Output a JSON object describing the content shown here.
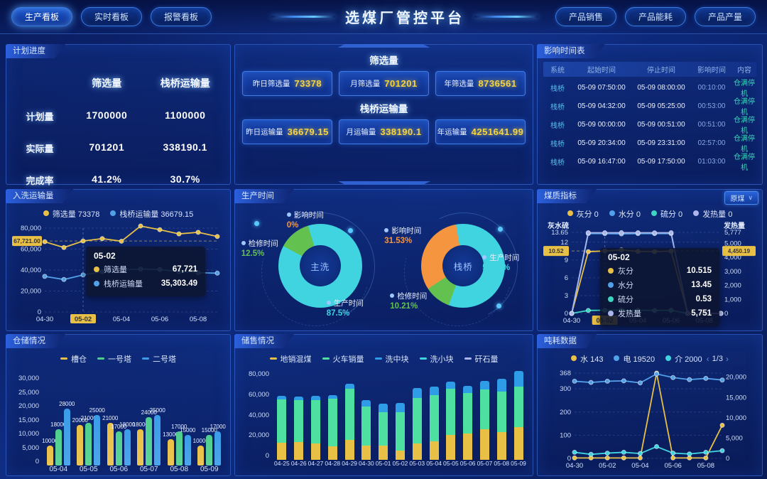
{
  "header": {
    "title": "选煤厂管控平台",
    "left_buttons": [
      {
        "label": "生产看板",
        "active": true
      },
      {
        "label": "实时看板",
        "active": false
      },
      {
        "label": "报警看板",
        "active": false
      }
    ],
    "right_buttons": [
      {
        "label": "产品销售"
      },
      {
        "label": "产品能耗"
      },
      {
        "label": "产品产量"
      }
    ]
  },
  "plan_progress": {
    "title": "计划进度",
    "columns": [
      "筛选量",
      "栈桥运输量"
    ],
    "rows": [
      {
        "label": "计划量",
        "values": [
          "1700000",
          "1100000"
        ]
      },
      {
        "label": "实际量",
        "values": [
          "701201",
          "338190.1"
        ]
      },
      {
        "label": "完成率",
        "values": [
          "41.2%",
          "30.7%"
        ]
      }
    ]
  },
  "volume_summary": {
    "sections": [
      {
        "title": "筛选量",
        "stats": [
          {
            "label": "昨日筛选量",
            "value": "73378"
          },
          {
            "label": "月筛选量",
            "value": "701201"
          },
          {
            "label": "年筛选量",
            "value": "8736561"
          }
        ]
      },
      {
        "title": "栈桥运输量",
        "stats": [
          {
            "label": "昨日运输量",
            "value": "36679.15"
          },
          {
            "label": "月运输量",
            "value": "338190.1"
          },
          {
            "label": "年运输量",
            "value": "4251641.99"
          }
        ]
      }
    ]
  },
  "impact_table": {
    "title": "影响时间表",
    "columns": [
      "系统",
      "起始时间",
      "停止时间",
      "影响时间",
      "内容"
    ],
    "rows": [
      [
        "栈桥",
        "05-09 07:50:00",
        "05-09 08:00:00",
        "00:10:00",
        "仓满停机"
      ],
      [
        "栈桥",
        "05-09 04:32:00",
        "05-09 05:25:00",
        "00:53:00",
        "仓满停机"
      ],
      [
        "栈桥",
        "05-09 00:00:00",
        "05-09 00:51:00",
        "00:51:00",
        "仓满停机"
      ],
      [
        "栈桥",
        "05-09 20:34:00",
        "05-09 23:31:00",
        "02:57:00",
        "仓满停机"
      ],
      [
        "栈桥",
        "05-09 16:47:00",
        "05-09 17:50:00",
        "01:03:00",
        "仓满停机"
      ]
    ]
  },
  "wash_volume": {
    "title": "入洗运输量",
    "chart_data": {
      "type": "line",
      "legend": [
        {
          "name": "筛选量",
          "value": "73378",
          "color": "#e9c046"
        },
        {
          "name": "栈桥运输量",
          "value": "36679.15",
          "color": "#52a0e8"
        }
      ],
      "x": [
        "04-30",
        "05-01",
        "05-02",
        "05-03",
        "05-04",
        "05-05",
        "05-06",
        "05-07",
        "05-08",
        "05-09"
      ],
      "series": [
        {
          "name": "筛选量",
          "color": "#e9c046",
          "values": [
            67000,
            61500,
            67721,
            70000,
            67500,
            82000,
            78500,
            74500,
            76000,
            72000
          ]
        },
        {
          "name": "栈桥运输量",
          "color": "#52a0e8",
          "values": [
            34000,
            31000,
            35303,
            38500,
            40000,
            41000,
            40500,
            38500,
            37500,
            37000
          ]
        }
      ],
      "ylim": [
        0,
        80000
      ],
      "yticks": [
        80000,
        60000,
        40000,
        20000,
        0
      ],
      "xticks": [
        "04-30",
        "05-02",
        "05-04",
        "05-06",
        "05-08"
      ],
      "highlighted_xtick": "05-02",
      "y_axis_marker": "67,721.00",
      "tooltip": {
        "title": "05-02",
        "rows": [
          {
            "name": "筛选量",
            "value": "67,721",
            "color": "#e9c046"
          },
          {
            "name": "栈桥运输量",
            "value": "35,303.49",
            "color": "#52a0e8"
          }
        ]
      }
    }
  },
  "production_time": {
    "title": "生产时间",
    "donuts": [
      {
        "center_label": "主洗",
        "slices": [
          {
            "name": "影响时间",
            "pct": "0%",
            "value": 0,
            "color": "#f5953f"
          },
          {
            "name": "检修时间",
            "pct": "12.5%",
            "value": 12.5,
            "color": "#63c24f"
          },
          {
            "name": "生产时间",
            "pct": "87.5%",
            "value": 87.5,
            "color": "#3fd4e0"
          }
        ]
      },
      {
        "center_label": "栈桥",
        "slices": [
          {
            "name": "影响时间",
            "pct": "31.53%",
            "value": 31.53,
            "color": "#f5953f"
          },
          {
            "name": "检修时间",
            "pct": "10.21%",
            "value": 10.21,
            "color": "#63c24f"
          },
          {
            "name": "生产时间",
            "pct": "58.26%",
            "value": 58.26,
            "color": "#3fd4e0"
          }
        ]
      }
    ]
  },
  "coal_quality": {
    "title": "煤质指标",
    "dropdown_label": "原煤",
    "chart_data": {
      "type": "line",
      "legend": [
        {
          "name": "灰分",
          "value": "0",
          "color": "#e9c046"
        },
        {
          "name": "水分",
          "value": "0",
          "color": "#52a0e8"
        },
        {
          "name": "硫分",
          "value": "0",
          "color": "#3fd4c0"
        },
        {
          "name": "发热量",
          "value": "0",
          "color": "#aab6ec"
        }
      ],
      "x": [
        "04-30",
        "05-01",
        "05-02",
        "05-03",
        "05-04",
        "05-05",
        "05-06",
        "05-07",
        "05-08",
        "05-09"
      ],
      "left_axis": {
        "title": "灰水硫",
        "max": 13.65,
        "ticks": [
          13.65,
          12,
          9,
          6,
          3,
          0
        ],
        "marker": "10.52"
      },
      "right_axis": {
        "title": "发热量",
        "max": 5777,
        "ticks": [
          5777,
          5000,
          4000,
          3000,
          2000,
          1000,
          0
        ],
        "marker": "4,450.19"
      },
      "series": [
        {
          "name": "灰分",
          "axis": "left",
          "color": "#e9c046",
          "values": [
            0,
            10.4,
            10.515,
            10.7,
            10.45,
            10.4,
            10.5,
            0,
            0,
            0
          ]
        },
        {
          "name": "水分",
          "axis": "left",
          "color": "#52a0e8",
          "values": [
            0,
            13.45,
            13.45,
            13.4,
            13.45,
            13.45,
            13.45,
            0,
            0,
            0
          ]
        },
        {
          "name": "硫分",
          "axis": "left",
          "color": "#3fd4c0",
          "values": [
            0,
            0.5,
            0.53,
            0.55,
            0.52,
            0.5,
            0.52,
            0,
            0,
            0
          ]
        },
        {
          "name": "发热量",
          "axis": "right",
          "color": "#aab6ec",
          "values": [
            0,
            5750,
            5751,
            5755,
            5750,
            5748,
            5750,
            0,
            0,
            0
          ]
        }
      ],
      "xticks": [
        "04-30",
        "05-02",
        "05-04",
        "05-06",
        "05-08"
      ],
      "highlighted_xtick": "05-02",
      "tooltip": {
        "title": "05-02",
        "rows": [
          {
            "name": "灰分",
            "value": "10.515",
            "color": "#e9c046"
          },
          {
            "name": "水分",
            "value": "13.45",
            "color": "#52a0e8"
          },
          {
            "name": "硫分",
            "value": "0.53",
            "color": "#3fd4c0"
          },
          {
            "name": "发热量",
            "value": "5,751",
            "color": "#aab6ec"
          }
        ]
      }
    }
  },
  "storage": {
    "title": "仓储情况",
    "chart_data": {
      "type": "bar",
      "categories": [
        "05-04",
        "05-05",
        "05-06",
        "05-07",
        "05-08",
        "05-09"
      ],
      "series": [
        {
          "name": "槽仓",
          "color": "#e9c046",
          "values": [
            10000,
            20000,
            21000,
            18000,
            13000,
            10000
          ]
        },
        {
          "name": "一号塔",
          "color": "#4ecf8e",
          "values": [
            18000,
            21000,
            17000,
            24000,
            17000,
            15000
          ]
        },
        {
          "name": "二号塔",
          "color": "#3b9ce8",
          "values": [
            28000,
            25000,
            18000,
            25000,
            15000,
            17000
          ]
        }
      ],
      "yticks": [
        30000,
        25000,
        20000,
        15000,
        10000,
        5000,
        0
      ]
    }
  },
  "storage_sales": {
    "title": "储售情况",
    "chart_data": {
      "type": "stacked-bar",
      "categories": [
        "04-25",
        "04-26",
        "04-27",
        "04-28",
        "04-29",
        "04-30",
        "05-01",
        "05-02",
        "05-03",
        "05-04",
        "05-05",
        "05-06",
        "05-07",
        "05-08",
        "05-09"
      ],
      "series": [
        {
          "name": "地销混煤",
          "color": "#e9c046",
          "values": [
            15000,
            16000,
            14500,
            12000,
            17500,
            13000,
            12500,
            8500,
            14500,
            16500,
            22000,
            23500,
            27000,
            24500,
            29500
          ]
        },
        {
          "name": "火车销量",
          "color": "#4ee0a0",
          "values": [
            38500,
            37500,
            38500,
            42500,
            46000,
            35000,
            30000,
            34500,
            40500,
            41500,
            41500,
            36500,
            35500,
            36000,
            36000
          ]
        },
        {
          "name": "洗中块",
          "color": "#2f9ce8",
          "values": [
            3000,
            3000,
            3500,
            3000,
            4500,
            6000,
            7500,
            8500,
            9000,
            7500,
            6500,
            6500,
            7500,
            11500,
            14000
          ]
        },
        {
          "name": "洗小块",
          "color": "#3fd4e0",
          "values": [
            0,
            0,
            0,
            0,
            0,
            0,
            0,
            0,
            0,
            0,
            0,
            0,
            0,
            0,
            0
          ]
        },
        {
          "name": "矸石量",
          "color": "#aab6ec",
          "values": [
            0,
            0,
            0,
            0,
            0,
            0,
            0,
            0,
            0,
            0,
            0,
            0,
            0,
            0,
            0
          ]
        }
      ],
      "yticks": [
        80000,
        60000,
        40000,
        20000,
        0
      ]
    }
  },
  "consumption": {
    "title": "吨耗数据",
    "pagination": {
      "label": "1/3",
      "prev": "‹",
      "next": "›"
    },
    "chart_data": {
      "type": "line",
      "legend": [
        {
          "name": "水",
          "value": "143",
          "color": "#e9c046"
        },
        {
          "name": "电",
          "value": "19520",
          "color": "#52a0e8"
        },
        {
          "name": "介",
          "value": "2000",
          "color": "#3fd4e0"
        }
      ],
      "x": [
        "04-30",
        "05-01",
        "05-02",
        "05-03",
        "05-04",
        "05-05",
        "05-06",
        "05-07",
        "05-08",
        "05-09"
      ],
      "left_axis": {
        "max": 368,
        "ticks": [
          368,
          300,
          200,
          100,
          0
        ]
      },
      "right_axis": {
        "max": 21000,
        "ticks": [
          20000,
          15000,
          10000,
          5000,
          0
        ]
      },
      "series": [
        {
          "name": "水",
          "axis": "left",
          "color": "#e9c046",
          "values": [
            2,
            2,
            2,
            2,
            2,
            368,
            2,
            2,
            2,
            143
          ]
        },
        {
          "name": "电",
          "axis": "right",
          "color": "#52a0e8",
          "values": [
            19000,
            18700,
            19000,
            19100,
            18600,
            20800,
            19900,
            19400,
            19700,
            19300
          ]
        },
        {
          "name": "介",
          "axis": "right",
          "color": "#3fd4e0",
          "values": [
            1500,
            1000,
            1300,
            1500,
            1200,
            2900,
            1300,
            1100,
            1500,
            1900
          ]
        }
      ],
      "xticks": [
        "04-30",
        "05-02",
        "05-04",
        "05-06",
        "05-08"
      ]
    }
  }
}
